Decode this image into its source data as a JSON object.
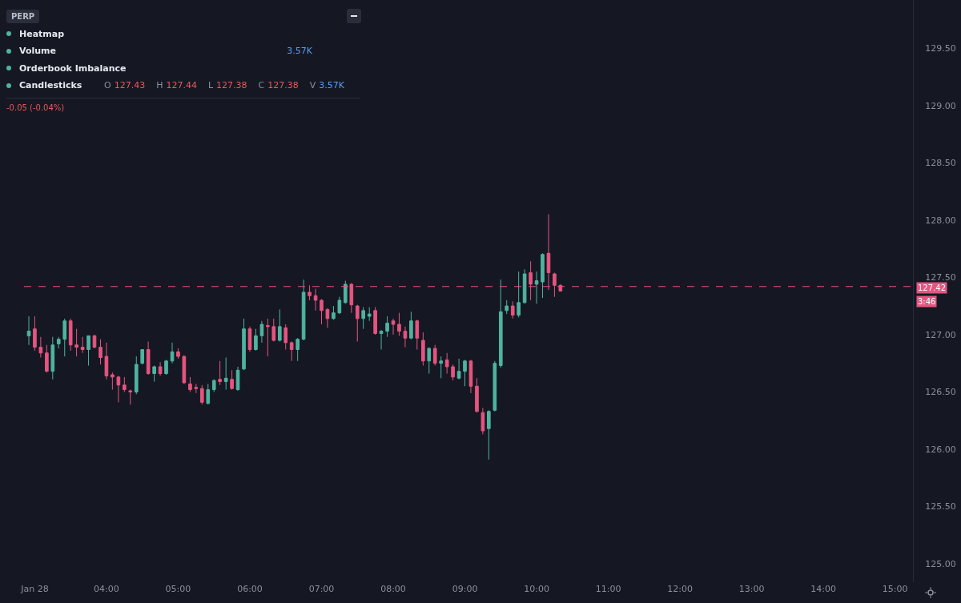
{
  "chart_data": {
    "type": "candlestick",
    "subtitle": "PERP",
    "annotations": [
      "Heatmap",
      "Volume",
      "3.57K",
      "Orderbook Imbalance",
      "Candlesticks",
      "O",
      "127.43",
      "H",
      "127.44",
      "L",
      "127.38",
      "C",
      "127.38",
      "V",
      "3.57K",
      "-0.05 (-0.04%)",
      "3:46"
    ],
    "x": [
      2.917,
      3,
      3.083,
      3.167,
      3.25,
      3.333,
      3.417,
      3.5,
      3.583,
      3.667,
      3.75,
      3.833,
      3.917,
      4,
      4.083,
      4.167,
      4.25,
      4.333,
      4.417,
      4.5,
      4.583,
      4.667,
      4.75,
      4.833,
      4.917,
      5,
      5.083,
      5.167,
      5.25,
      5.333,
      5.417,
      5.5,
      5.583,
      5.667,
      5.75,
      5.833,
      5.917,
      6,
      6.083,
      6.167,
      6.25,
      6.333,
      6.417,
      6.5,
      6.583,
      6.667,
      6.75,
      6.833,
      6.917,
      7,
      7.083,
      7.167,
      7.25,
      7.333,
      7.417,
      7.5,
      7.583,
      7.667,
      7.75,
      7.833,
      7.917,
      8,
      8.083,
      8.167,
      8.25,
      8.333,
      8.417,
      8.5,
      8.583,
      8.667,
      8.75,
      8.833,
      8.917,
      9,
      9.083,
      9.167,
      9.25,
      9.333,
      9.417,
      9.5,
      9.583,
      9.667,
      9.75,
      9.833,
      9.917,
      10,
      10.083,
      10.167,
      10.25,
      10.333
    ],
    "ohlc": [
      [
        126.99,
        127.16,
        126.91,
        127.03
      ],
      [
        127.05,
        127.16,
        126.86,
        126.89
      ],
      [
        126.89,
        126.98,
        126.8,
        126.84
      ],
      [
        126.84,
        126.91,
        126.67,
        126.68
      ],
      [
        126.68,
        126.98,
        126.61,
        126.91
      ],
      [
        126.92,
        126.98,
        126.88,
        126.96
      ],
      [
        126.96,
        127.14,
        126.81,
        127.12
      ],
      [
        127.12,
        127.14,
        126.86,
        126.91
      ],
      [
        126.91,
        127.05,
        126.81,
        126.89
      ],
      [
        126.89,
        126.98,
        126.84,
        126.87
      ],
      [
        126.87,
        126.99,
        126.73,
        126.99
      ],
      [
        126.99,
        127.0,
        126.88,
        126.89
      ],
      [
        126.89,
        126.96,
        126.74,
        126.8
      ],
      [
        126.81,
        126.93,
        126.61,
        126.64
      ],
      [
        126.65,
        126.67,
        126.52,
        126.63
      ],
      [
        126.63,
        126.64,
        126.41,
        126.56
      ],
      [
        126.56,
        126.63,
        126.5,
        126.52
      ],
      [
        126.51,
        126.52,
        126.39,
        126.5
      ],
      [
        126.5,
        126.81,
        126.48,
        126.74
      ],
      [
        126.75,
        126.87,
        126.74,
        126.87
      ],
      [
        126.87,
        126.94,
        126.65,
        126.66
      ],
      [
        126.66,
        126.73,
        126.59,
        126.72
      ],
      [
        126.72,
        126.76,
        126.64,
        126.66
      ],
      [
        126.66,
        126.78,
        126.65,
        126.77
      ],
      [
        126.77,
        126.93,
        126.75,
        126.85
      ],
      [
        126.85,
        126.88,
        126.79,
        126.81
      ],
      [
        126.81,
        126.82,
        126.57,
        126.58
      ],
      [
        126.57,
        126.63,
        126.5,
        126.52
      ],
      [
        126.54,
        126.57,
        126.49,
        126.53
      ],
      [
        126.53,
        126.56,
        126.39,
        126.41
      ],
      [
        126.4,
        126.57,
        126.39,
        126.52
      ],
      [
        126.52,
        126.61,
        126.5,
        126.6
      ],
      [
        126.61,
        126.77,
        126.56,
        126.59
      ],
      [
        126.59,
        126.8,
        126.52,
        126.62
      ],
      [
        126.61,
        126.69,
        126.52,
        126.53
      ],
      [
        126.52,
        126.72,
        126.51,
        126.69
      ],
      [
        126.7,
        127.14,
        126.69,
        127.05
      ],
      [
        127.05,
        127.07,
        126.85,
        126.87
      ],
      [
        126.87,
        127.05,
        126.86,
        126.99
      ],
      [
        126.99,
        127.12,
        126.93,
        127.09
      ],
      [
        127.08,
        127.14,
        126.81,
        127.07
      ],
      [
        127.07,
        127.14,
        126.94,
        126.95
      ],
      [
        126.95,
        127.22,
        126.94,
        127.07
      ],
      [
        127.06,
        127.09,
        126.87,
        126.93
      ],
      [
        126.93,
        126.94,
        126.77,
        126.87
      ],
      [
        126.87,
        126.97,
        126.77,
        126.96
      ],
      [
        126.96,
        127.48,
        126.95,
        127.37
      ],
      [
        127.37,
        127.43,
        127.3,
        127.34
      ],
      [
        127.34,
        127.4,
        127.21,
        127.3
      ],
      [
        127.3,
        127.31,
        127.09,
        127.21
      ],
      [
        127.22,
        127.23,
        127.06,
        127.14
      ],
      [
        127.14,
        127.25,
        127.13,
        127.19
      ],
      [
        127.19,
        127.33,
        127.18,
        127.3
      ],
      [
        127.28,
        127.47,
        127.27,
        127.44
      ],
      [
        127.44,
        127.45,
        127.19,
        127.26
      ],
      [
        127.25,
        127.26,
        126.94,
        127.14
      ],
      [
        127.14,
        127.24,
        127.05,
        127.21
      ],
      [
        127.16,
        127.24,
        127.12,
        127.18
      ],
      [
        127.21,
        127.24,
        127.0,
        127.01
      ],
      [
        127.01,
        127.04,
        126.87,
        127.03
      ],
      [
        127.03,
        127.16,
        126.98,
        127.1
      ],
      [
        127.12,
        127.14,
        127.0,
        127.09
      ],
      [
        127.09,
        127.19,
        126.99,
        127.03
      ],
      [
        127.03,
        127.07,
        126.89,
        126.97
      ],
      [
        126.97,
        127.2,
        126.96,
        127.12
      ],
      [
        127.12,
        127.13,
        126.87,
        126.97
      ],
      [
        126.95,
        127.02,
        126.73,
        126.77
      ],
      [
        126.77,
        126.89,
        126.66,
        126.88
      ],
      [
        126.88,
        126.91,
        126.73,
        126.75
      ],
      [
        126.75,
        126.81,
        126.62,
        126.77
      ],
      [
        126.78,
        126.84,
        126.66,
        126.72
      ],
      [
        126.72,
        126.74,
        126.6,
        126.63
      ],
      [
        126.62,
        126.79,
        126.61,
        126.68
      ],
      [
        126.68,
        126.78,
        126.55,
        126.77
      ],
      [
        126.77,
        126.78,
        126.49,
        126.55
      ],
      [
        126.55,
        126.62,
        126.32,
        126.33
      ],
      [
        126.32,
        126.36,
        126.13,
        126.16
      ],
      [
        126.18,
        126.34,
        125.91,
        126.33
      ],
      [
        126.34,
        126.77,
        126.33,
        126.75
      ],
      [
        126.73,
        127.48,
        126.71,
        127.2
      ],
      [
        127.21,
        127.3,
        127.18,
        127.25
      ],
      [
        127.25,
        127.29,
        127.14,
        127.17
      ],
      [
        127.17,
        127.55,
        127.15,
        127.28
      ],
      [
        127.28,
        127.57,
        127.27,
        127.53
      ],
      [
        127.54,
        127.64,
        127.3,
        127.44
      ],
      [
        127.44,
        127.55,
        127.27,
        127.47
      ],
      [
        127.46,
        127.71,
        127.32,
        127.7
      ],
      [
        127.71,
        128.05,
        127.39,
        127.54
      ],
      [
        127.53,
        127.54,
        127.33,
        127.43
      ],
      [
        127.43,
        127.44,
        127.38,
        127.38
      ]
    ],
    "colors": [
      "#4fb3a0",
      "#e5557f",
      "#e5557f",
      "#e5557f",
      "#4fb3a0",
      "#4fb3a0",
      "#4fb3a0",
      "#e5557f",
      "#e5557f",
      "#e5557f",
      "#4fb3a0",
      "#e5557f",
      "#e5557f",
      "#e5557f",
      "#e5557f",
      "#e5557f",
      "#e5557f",
      "#e5557f",
      "#4fb3a0",
      "#4fb3a0",
      "#e5557f",
      "#4fb3a0",
      "#e5557f",
      "#4fb3a0",
      "#4fb3a0",
      "#e5557f",
      "#e5557f",
      "#e5557f",
      "#e5557f",
      "#e5557f",
      "#4fb3a0",
      "#4fb3a0",
      "#e5557f",
      "#4fb3a0",
      "#e5557f",
      "#4fb3a0",
      "#4fb3a0",
      "#e5557f",
      "#4fb3a0",
      "#4fb3a0",
      "#e5557f",
      "#e5557f",
      "#4fb3a0",
      "#e5557f",
      "#e5557f",
      "#4fb3a0",
      "#4fb3a0",
      "#e5557f",
      "#e5557f",
      "#e5557f",
      "#e5557f",
      "#4fb3a0",
      "#4fb3a0",
      "#4fb3a0",
      "#e5557f",
      "#e5557f",
      "#4fb3a0",
      "#4fb3a0",
      "#e5557f",
      "#4fb3a0",
      "#4fb3a0",
      "#e5557f",
      "#e5557f",
      "#e5557f",
      "#4fb3a0",
      "#e5557f",
      "#e5557f",
      "#4fb3a0",
      "#e5557f",
      "#4fb3a0",
      "#e5557f",
      "#e5557f",
      "#4fb3a0",
      "#4fb3a0",
      "#e5557f",
      "#e5557f",
      "#e5557f",
      "#4fb3a0",
      "#4fb3a0",
      "#4fb3a0",
      "#4fb3a0",
      "#e5557f",
      "#4fb3a0",
      "#4fb3a0",
      "#e5557f",
      "#4fb3a0",
      "#4fb3a0",
      "#e5557f",
      "#e5557f",
      "#e5557f"
    ],
    "xlim": [
      2.85,
      15.25
    ],
    "xticks": [
      {
        "value": 3,
        "label": "Jan 28"
      },
      {
        "value": 4,
        "label": "04:00"
      },
      {
        "value": 5,
        "label": "05:00"
      },
      {
        "value": 6,
        "label": "06:00"
      },
      {
        "value": 7,
        "label": "07:00"
      },
      {
        "value": 8,
        "label": "08:00"
      },
      {
        "value": 9,
        "label": "09:00"
      },
      {
        "value": 10,
        "label": "10:00"
      },
      {
        "value": 11,
        "label": "11:00"
      },
      {
        "value": 12,
        "label": "12:00"
      },
      {
        "value": 13,
        "label": "13:00"
      },
      {
        "value": 14,
        "label": "14:00"
      },
      {
        "value": 15,
        "label": "15:00"
      }
    ],
    "ylim": [
      124.84,
      129.92
    ],
    "yticks": [
      {
        "value": 125,
        "label": "125.00"
      },
      {
        "value": 125.5,
        "label": "125.50"
      },
      {
        "value": 126,
        "label": "126.00"
      },
      {
        "value": 126.5,
        "label": "126.50"
      },
      {
        "value": 127,
        "label": "127.00"
      },
      {
        "value": 127.5,
        "label": "127.50"
      },
      {
        "value": 128,
        "label": "128.00"
      },
      {
        "value": 128.5,
        "label": "128.50"
      },
      {
        "value": 129,
        "label": "129.00"
      },
      {
        "value": 129.5,
        "label": "129.50"
      }
    ],
    "ref_lines": [
      {
        "axis": "y",
        "value": 127.42,
        "label": "127.42",
        "color": "#e5557f",
        "line_style": "dashed"
      }
    ],
    "grid": false
  }
}
